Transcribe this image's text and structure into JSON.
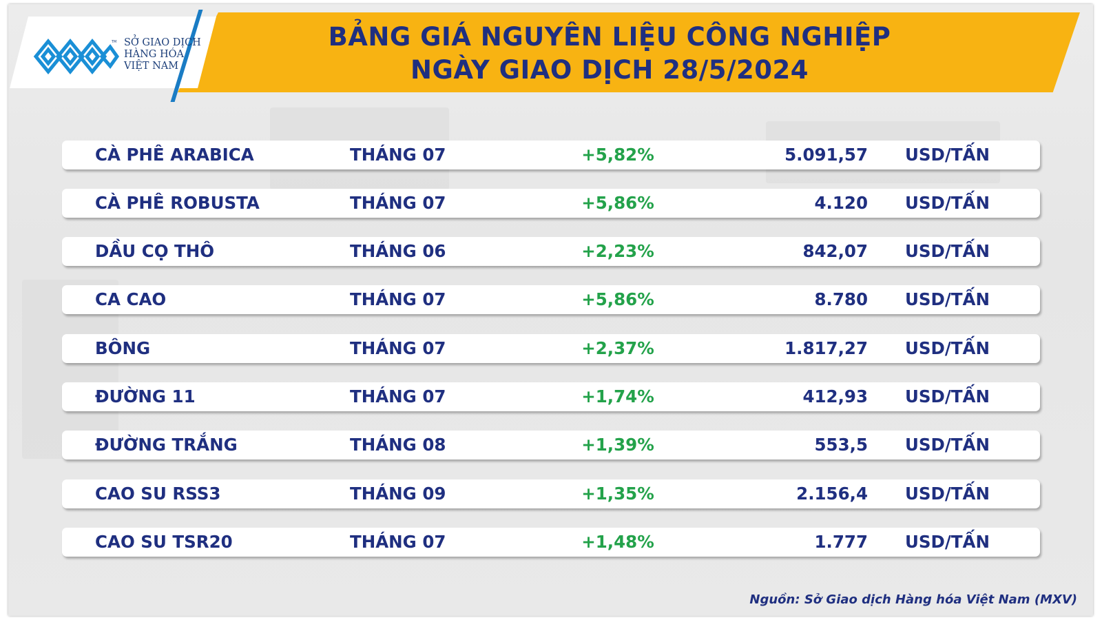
{
  "header": {
    "title_line1": "BẢNG GIÁ NGUYÊN LIỆU CÔNG NGHIỆP",
    "title_line2": "NGÀY GIAO DỊCH 28/5/2024"
  },
  "logo": {
    "line1": "SỞ GIAO DỊCH",
    "line2": "HÀNG HÓA",
    "line3": "VIỆT NAM",
    "trademark": "TM"
  },
  "rows": [
    {
      "name": "CÀ PHÊ ARABICA",
      "month": "THÁNG 07",
      "change": "+5,82%",
      "price": "5.091,57",
      "unit": "USD/TẤN"
    },
    {
      "name": "CÀ PHÊ ROBUSTA",
      "month": "THÁNG 07",
      "change": "+5,86%",
      "price": "4.120",
      "unit": "USD/TẤN"
    },
    {
      "name": "DẦU CỌ THÔ",
      "month": "THÁNG 06",
      "change": "+2,23%",
      "price": "842,07",
      "unit": "USD/TẤN"
    },
    {
      "name": "CA CAO",
      "month": "THÁNG 07",
      "change": "+5,86%",
      "price": "8.780",
      "unit": "USD/TẤN"
    },
    {
      "name": "BÔNG",
      "month": "THÁNG 07",
      "change": "+2,37%",
      "price": "1.817,27",
      "unit": "USD/TẤN"
    },
    {
      "name": "ĐƯỜNG 11",
      "month": "THÁNG 07",
      "change": "+1,74%",
      "price": "412,93",
      "unit": "USD/TẤN"
    },
    {
      "name": "ĐƯỜNG TRẮNG",
      "month": "THÁNG 08",
      "change": "+1,39%",
      "price": "553,5",
      "unit": "USD/TẤN"
    },
    {
      "name": "CAO SU RSS3",
      "month": "THÁNG 09",
      "change": "+1,35%",
      "price": "2.156,4",
      "unit": "USD/TẤN"
    },
    {
      "name": "CAO SU TSR20",
      "month": "THÁNG 07",
      "change": "+1,48%",
      "price": "1.777",
      "unit": "USD/TẤN"
    }
  ],
  "footer": {
    "source": "Nguồn: Sở Giao dịch Hàng hóa Việt Nam (MXV)"
  },
  "colors": {
    "banner": "#f8b312",
    "title_text": "#1f2f80",
    "positive_change": "#23a24a",
    "logo_blue": "#1a7cc4"
  }
}
